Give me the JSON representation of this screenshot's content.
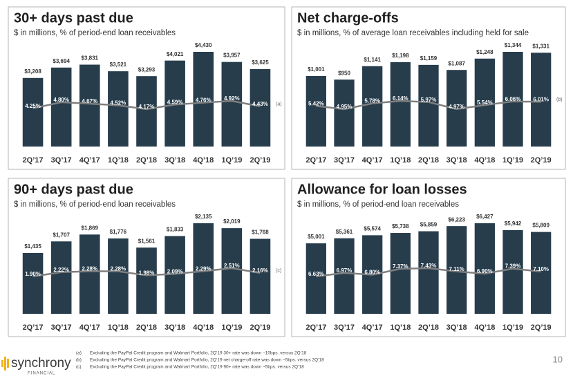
{
  "chart_data": [
    {
      "type": "bar",
      "title": "30+ days past due",
      "subtitle": "$ in millions, % of period-end loan receivables",
      "categories": [
        "2Q’17",
        "3Q’17",
        "4Q’17",
        "1Q’18",
        "2Q’18",
        "3Q’18",
        "4Q’18",
        "1Q’19",
        "2Q’19"
      ],
      "series": [
        {
          "color": "#273d4c",
          "values": [
            3208,
            3694,
            3831,
            3521,
            3293,
            4021,
            4430,
            3957,
            3625
          ],
          "value_labels": [
            "$3,208",
            "$3,694",
            "$3,831",
            "$3,521",
            "$3,293",
            "$4,021",
            "$4,430",
            "$3,957",
            "$3,625"
          ]
        },
        {
          "type": "line",
          "axis": "y2",
          "color": "#7f7f7f",
          "values": [
            4.25,
            4.8,
            4.67,
            4.52,
            4.17,
            4.59,
            4.76,
            4.92,
            4.43
          ],
          "value_labels": [
            "4.25%",
            "4.80%",
            "4.67%",
            "4.52%",
            "4.17%",
            "4.59%",
            "4.76%",
            "4.92%",
            "4.43%"
          ]
        }
      ],
      "annotation": "(a)"
    },
    {
      "type": "bar",
      "title": "Net charge-offs",
      "subtitle": "$ in millions, % of average loan receivables including held for sale",
      "categories": [
        "2Q’17",
        "3Q’17",
        "4Q’17",
        "1Q’18",
        "2Q’18",
        "3Q’18",
        "4Q’18",
        "1Q’19",
        "2Q’19"
      ],
      "series": [
        {
          "color": "#273d4c",
          "values": [
            1001,
            950,
            1141,
            1198,
            1159,
            1087,
            1248,
            1344,
            1331
          ],
          "value_labels": [
            "$1,001",
            "$950",
            "$1,141",
            "$1,198",
            "$1,159",
            "$1,087",
            "$1,248",
            "$1,344",
            "$1,331"
          ]
        },
        {
          "type": "line",
          "axis": "y2",
          "color": "#7f7f7f",
          "values": [
            5.42,
            4.95,
            5.78,
            6.14,
            5.97,
            4.97,
            5.54,
            6.06,
            6.01
          ],
          "value_labels": [
            "5.42%",
            "4.95%",
            "5.78%",
            "6.14%",
            "5.97%",
            "4.97%",
            "5.54%",
            "6.06%",
            "6.01%"
          ]
        }
      ],
      "annotation": "(b)"
    },
    {
      "type": "bar",
      "title": "90+ days past due",
      "subtitle": "$ in millions, % of period-end loan receivables",
      "categories": [
        "2Q’17",
        "3Q’17",
        "4Q’17",
        "1Q’18",
        "2Q’18",
        "3Q’18",
        "4Q’18",
        "1Q’19",
        "2Q’19"
      ],
      "series": [
        {
          "color": "#273d4c",
          "values": [
            1435,
            1707,
            1869,
            1776,
            1561,
            1833,
            2135,
            2019,
            1768
          ],
          "value_labels": [
            "$1,435",
            "$1,707",
            "$1,869",
            "$1,776",
            "$1,561",
            "$1,833",
            "$2,135",
            "$2,019",
            "$1,768"
          ]
        },
        {
          "type": "line",
          "axis": "y2",
          "color": "#7f7f7f",
          "values": [
            1.9,
            2.22,
            2.28,
            2.28,
            1.98,
            2.09,
            2.29,
            2.51,
            2.16
          ],
          "value_labels": [
            "1.90%",
            "2.22%",
            "2.28%",
            "2.28%",
            "1.98%",
            "2.09%",
            "2.29%",
            "2.51%",
            "2.16%"
          ]
        }
      ],
      "annotation": "(c)"
    },
    {
      "type": "bar",
      "title": "Allowance for loan losses",
      "subtitle": "$ in millions, % of period-end loan receivables",
      "categories": [
        "2Q’17",
        "3Q’17",
        "4Q’17",
        "1Q’18",
        "2Q’18",
        "3Q’18",
        "4Q’18",
        "1Q’19",
        "2Q’19"
      ],
      "series": [
        {
          "color": "#273d4c",
          "values": [
            5001,
            5361,
            5574,
            5738,
            5859,
            6223,
            6427,
            5942,
            5809
          ],
          "value_labels": [
            "$5,001",
            "$5,361",
            "$5,574",
            "$5,738",
            "$5,859",
            "$6,223",
            "$6,427",
            "$5,942",
            "$5,809"
          ]
        },
        {
          "type": "line",
          "axis": "y2",
          "color": "#7f7f7f",
          "values": [
            6.63,
            6.97,
            6.8,
            7.37,
            7.43,
            7.11,
            6.9,
            7.39,
            7.1
          ],
          "value_labels": [
            "6.63%",
            "6.97%",
            "6.80%",
            "7.37%",
            "7.43%",
            "7.11%",
            "6.90%",
            "7.39%",
            "7.10%"
          ]
        }
      ]
    }
  ],
  "footnotes": [
    {
      "marker": "(a)",
      "text": "Excluding the PayPal Credit program and Walmart Portfolio, 2Q’19 30+ rate was down ~10bps. versus 2Q’18"
    },
    {
      "marker": "(b)",
      "text": "Excluding the PayPal Credit program and Walmart Portfolio, 2Q’19 net charge-off rate was down ~5bps. versus 2Q’18"
    },
    {
      "marker": "(c)",
      "text": "Excluding the PayPal Credit program and Walmart Portfolio, 2Q’19 90+ rate was down ~5bps. versus 2Q’18"
    }
  ],
  "logo": {
    "name": "synchrony",
    "tagline": "FINANCIAL"
  },
  "page_number": "10"
}
